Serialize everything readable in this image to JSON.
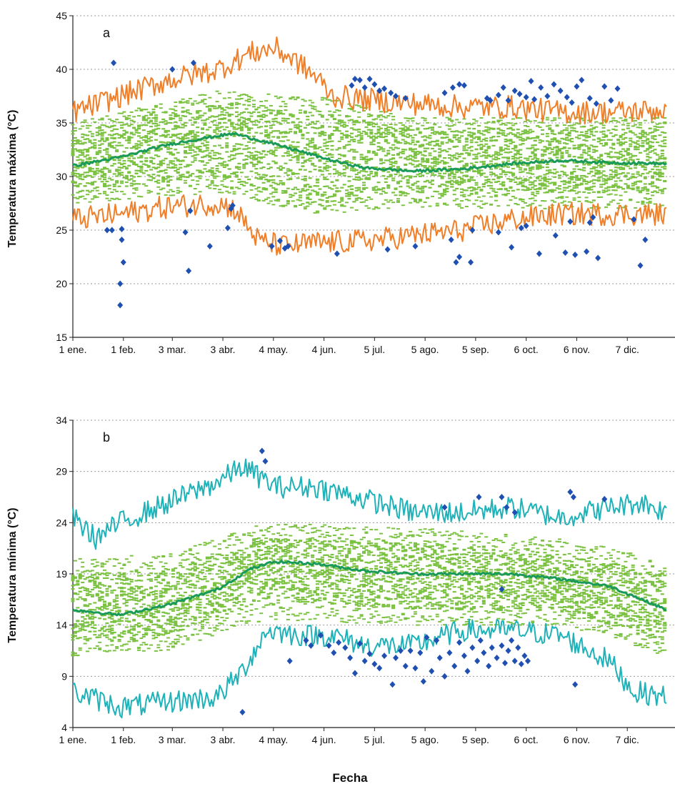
{
  "figure": {
    "xlabel": "Fecha"
  },
  "chart_data": [
    {
      "type": "line",
      "panel_label": "a",
      "ylabel": "Temperatura máxima (°C)",
      "xlabel": "Fecha",
      "ylim": [
        15,
        45
      ],
      "yticks": [
        15,
        20,
        25,
        30,
        35,
        40,
        45
      ],
      "xlim_day": [
        1,
        365
      ],
      "grid": "horizontal-dotted",
      "x_ticks": [
        {
          "day": 1,
          "label": "1 ene."
        },
        {
          "day": 32,
          "label": "1 feb."
        },
        {
          "day": 62,
          "label": "3 mar."
        },
        {
          "day": 93,
          "label": "3 abr."
        },
        {
          "day": 124,
          "label": "4 may."
        },
        {
          "day": 155,
          "label": "4 jun."
        },
        {
          "day": 186,
          "label": "5 jul."
        },
        {
          "day": 217,
          "label": "5 ago."
        },
        {
          "day": 248,
          "label": "5 sep."
        },
        {
          "day": 279,
          "label": "6 oct."
        },
        {
          "day": 310,
          "label": "6 nov."
        },
        {
          "day": 341,
          "label": "7 dic."
        }
      ],
      "colors": {
        "upper_lower": "#f07f2a",
        "mean": "#1a9a58",
        "ensemble": "#7cc242",
        "observed": "#1f4fb0"
      },
      "series": [
        {
          "role": "upper",
          "values": [
            [
              1,
              36.0
            ],
            [
              30,
              37.5
            ],
            [
              60,
              39.0
            ],
            [
              90,
              40.0
            ],
            [
              110,
              41.5
            ],
            [
              125,
              42.0
            ],
            [
              140,
              40.5
            ],
            [
              152,
              39.0
            ],
            [
              160,
              37.5
            ],
            [
              180,
              37.2
            ],
            [
              210,
              36.8
            ],
            [
              240,
              36.5
            ],
            [
              270,
              36.5
            ],
            [
              300,
              36.0
            ],
            [
              330,
              36.0
            ],
            [
              365,
              36.2
            ]
          ]
        },
        {
          "role": "mean",
          "values": [
            [
              1,
              31.0
            ],
            [
              30,
              31.8
            ],
            [
              60,
              33.0
            ],
            [
              90,
              33.8
            ],
            [
              100,
              34.0
            ],
            [
              130,
              32.8
            ],
            [
              160,
              31.5
            ],
            [
              180,
              30.8
            ],
            [
              210,
              30.5
            ],
            [
              240,
              30.7
            ],
            [
              270,
              31.2
            ],
            [
              300,
              31.5
            ],
            [
              330,
              31.3
            ],
            [
              365,
              31.2
            ]
          ]
        },
        {
          "role": "lower",
          "values": [
            [
              1,
              26.0
            ],
            [
              30,
              26.5
            ],
            [
              60,
              27.2
            ],
            [
              90,
              27.5
            ],
            [
              100,
              27.0
            ],
            [
              115,
              24.0
            ],
            [
              130,
              23.5
            ],
            [
              150,
              23.8
            ],
            [
              180,
              24.0
            ],
            [
              210,
              24.5
            ],
            [
              240,
              25.0
            ],
            [
              270,
              26.0
            ],
            [
              300,
              26.5
            ],
            [
              330,
              26.5
            ],
            [
              365,
              26.5
            ]
          ]
        }
      ],
      "ensemble": {
        "low": [
          [
            1,
            28.5
          ],
          [
            90,
            30.0
          ],
          [
            150,
            27.5
          ],
          [
            210,
            28.5
          ],
          [
            365,
            28.5
          ]
        ],
        "high": [
          [
            1,
            34.0
          ],
          [
            90,
            37.0
          ],
          [
            150,
            36.0
          ],
          [
            210,
            34.5
          ],
          [
            365,
            34.5
          ]
        ],
        "outer_low": [
          [
            1,
            27.5
          ],
          [
            90,
            28.5
          ],
          [
            150,
            26.5
          ],
          [
            210,
            27.0
          ],
          [
            365,
            27.0
          ]
        ],
        "outer_high": [
          [
            1,
            35.0
          ],
          [
            90,
            38.0
          ],
          [
            150,
            37.5
          ],
          [
            210,
            35.5
          ],
          [
            365,
            35.5
          ]
        ]
      },
      "observed": [
        [
          26,
          40.6
        ],
        [
          62,
          40.0
        ],
        [
          75,
          40.6
        ],
        [
          22,
          25
        ],
        [
          25,
          25
        ],
        [
          31,
          25.1
        ],
        [
          31,
          24.1
        ],
        [
          32,
          22.0
        ],
        [
          30,
          20.0
        ],
        [
          30,
          18.0
        ],
        [
          70,
          24.8
        ],
        [
          72,
          21.2
        ],
        [
          73,
          26.8
        ],
        [
          85,
          23.5
        ],
        [
          96,
          25.2
        ],
        [
          98,
          27.0
        ],
        [
          99,
          27.3
        ],
        [
          123,
          23.5
        ],
        [
          128,
          24.0
        ],
        [
          131,
          23.3
        ],
        [
          133,
          23.5
        ],
        [
          163,
          22.8
        ],
        [
          172,
          38.5
        ],
        [
          174,
          39.1
        ],
        [
          177,
          39.0
        ],
        [
          180,
          38.3
        ],
        [
          183,
          39.1
        ],
        [
          186,
          38.6
        ],
        [
          189,
          38.0
        ],
        [
          192,
          38.2
        ],
        [
          196,
          37.8
        ],
        [
          199,
          37.5
        ],
        [
          205,
          37.3
        ],
        [
          229,
          37.8
        ],
        [
          234,
          38.3
        ],
        [
          238,
          38.6
        ],
        [
          241,
          38.5
        ],
        [
          233,
          24.1
        ],
        [
          236,
          22.0
        ],
        [
          238,
          22.5
        ],
        [
          245,
          22.0
        ],
        [
          246,
          25.0
        ],
        [
          255,
          37.3
        ],
        [
          257,
          37.1
        ],
        [
          262,
          37.6
        ],
        [
          265,
          38.3
        ],
        [
          268,
          37.1
        ],
        [
          272,
          38.0
        ],
        [
          275,
          37.7
        ],
        [
          279,
          37.4
        ],
        [
          282,
          38.9
        ],
        [
          284,
          37.2
        ],
        [
          288,
          38.3
        ],
        [
          292,
          37.5
        ],
        [
          296,
          38.6
        ],
        [
          300,
          38.0
        ],
        [
          304,
          37.4
        ],
        [
          307,
          36.9
        ],
        [
          310,
          38.4
        ],
        [
          313,
          39.0
        ],
        [
          318,
          37.3
        ],
        [
          322,
          36.8
        ],
        [
          327,
          38.4
        ],
        [
          331,
          37.1
        ],
        [
          335,
          38.2
        ],
        [
          262,
          24.8
        ],
        [
          270,
          23.4
        ],
        [
          276,
          25.2
        ],
        [
          279,
          25.4
        ],
        [
          287,
          22.8
        ],
        [
          297,
          24.5
        ],
        [
          303,
          22.9
        ],
        [
          306,
          25.8
        ],
        [
          309,
          22.7
        ],
        [
          316,
          23.0
        ],
        [
          318,
          25.7
        ],
        [
          320,
          26.2
        ],
        [
          323,
          22.4
        ],
        [
          345,
          26.0
        ],
        [
          349,
          21.7
        ],
        [
          352,
          24.1
        ],
        [
          194,
          23.2
        ],
        [
          211,
          23.5
        ]
      ]
    },
    {
      "type": "line",
      "panel_label": "b",
      "ylabel": "Temperatura mínima (°C)",
      "xlabel": "Fecha",
      "ylim": [
        4,
        34
      ],
      "yticks": [
        4,
        9,
        14,
        19,
        24,
        29,
        34
      ],
      "xlim_day": [
        1,
        365
      ],
      "grid": "horizontal-dotted",
      "x_ticks": [
        {
          "day": 1,
          "label": "1 ene."
        },
        {
          "day": 32,
          "label": "1 feb."
        },
        {
          "day": 62,
          "label": "3 mar."
        },
        {
          "day": 93,
          "label": "3 abr."
        },
        {
          "day": 124,
          "label": "4 may."
        },
        {
          "day": 155,
          "label": "4 jun."
        },
        {
          "day": 186,
          "label": "5 jul."
        },
        {
          "day": 217,
          "label": "5 ago."
        },
        {
          "day": 248,
          "label": "5 sep."
        },
        {
          "day": 279,
          "label": "6 oct."
        },
        {
          "day": 310,
          "label": "6 nov."
        },
        {
          "day": 341,
          "label": "7 dic."
        }
      ],
      "colors": {
        "upper_lower": "#1fb2b8",
        "mean": "#1a9a58",
        "ensemble": "#7cc242",
        "observed": "#1f4fb0"
      },
      "series": [
        {
          "role": "upper",
          "values": [
            [
              1,
              24.5
            ],
            [
              15,
              22.5
            ],
            [
              30,
              24.0
            ],
            [
              60,
              26.0
            ],
            [
              90,
              28.0
            ],
            [
              105,
              29.5
            ],
            [
              125,
              27.5
            ],
            [
              150,
              27.5
            ],
            [
              175,
              26.5
            ],
            [
              210,
              25.0
            ],
            [
              240,
              25.0
            ],
            [
              270,
              25.5
            ],
            [
              300,
              24.5
            ],
            [
              330,
              25.5
            ],
            [
              350,
              26.0
            ],
            [
              365,
              25.0
            ]
          ]
        },
        {
          "role": "mean",
          "values": [
            [
              1,
              15.5
            ],
            [
              30,
              15.0
            ],
            [
              60,
              16.0
            ],
            [
              90,
              17.5
            ],
            [
              110,
              19.5
            ],
            [
              125,
              20.2
            ],
            [
              150,
              20.0
            ],
            [
              180,
              19.3
            ],
            [
              210,
              19.0
            ],
            [
              240,
              19.0
            ],
            [
              270,
              19.0
            ],
            [
              300,
              18.5
            ],
            [
              330,
              17.8
            ],
            [
              350,
              16.5
            ],
            [
              365,
              15.5
            ]
          ]
        },
        {
          "role": "lower",
          "values": [
            [
              1,
              7.5
            ],
            [
              30,
              6.0
            ],
            [
              60,
              6.5
            ],
            [
              90,
              7.0
            ],
            [
              105,
              9.5
            ],
            [
              120,
              13.5
            ],
            [
              140,
              13.0
            ],
            [
              160,
              13.0
            ],
            [
              180,
              12.0
            ],
            [
              210,
              12.0
            ],
            [
              240,
              13.5
            ],
            [
              270,
              13.5
            ],
            [
              300,
              13.0
            ],
            [
              330,
              10.5
            ],
            [
              345,
              7.5
            ],
            [
              365,
              7.0
            ]
          ]
        }
      ],
      "ensemble": {
        "low": [
          [
            1,
            12.5
          ],
          [
            60,
            13.0
          ],
          [
            120,
            16.5
          ],
          [
            210,
            15.5
          ],
          [
            300,
            15.5
          ],
          [
            365,
            12.5
          ]
        ],
        "high": [
          [
            1,
            19.0
          ],
          [
            60,
            19.5
          ],
          [
            120,
            22.5
          ],
          [
            210,
            22.0
          ],
          [
            300,
            21.0
          ],
          [
            365,
            19.0
          ]
        ],
        "outer_low": [
          [
            1,
            11.0
          ],
          [
            60,
            11.5
          ],
          [
            120,
            14.5
          ],
          [
            210,
            14.0
          ],
          [
            300,
            14.0
          ],
          [
            365,
            11.0
          ]
        ],
        "outer_high": [
          [
            1,
            20.5
          ],
          [
            60,
            21.0
          ],
          [
            120,
            24.0
          ],
          [
            210,
            23.5
          ],
          [
            300,
            22.5
          ],
          [
            365,
            20.5
          ]
        ]
      },
      "observed": [
        [
          117,
          31.0
        ],
        [
          119,
          30.0
        ],
        [
          105,
          5.5
        ],
        [
          134,
          10.5
        ],
        [
          144,
          12.5
        ],
        [
          147,
          12.0
        ],
        [
          153,
          13.0
        ],
        [
          158,
          12.0
        ],
        [
          161,
          11.3
        ],
        [
          164,
          12.3
        ],
        [
          168,
          11.8
        ],
        [
          171,
          10.8
        ],
        [
          174,
          9.3
        ],
        [
          177,
          12.2
        ],
        [
          180,
          10.5
        ],
        [
          183,
          11.2
        ],
        [
          186,
          10.2
        ],
        [
          189,
          9.8
        ],
        [
          192,
          11.0
        ],
        [
          197,
          8.2
        ],
        [
          199,
          10.8
        ],
        [
          202,
          11.5
        ],
        [
          205,
          10.0
        ],
        [
          208,
          11.5
        ],
        [
          211,
          9.8
        ],
        [
          214,
          11.3
        ],
        [
          216,
          8.5
        ],
        [
          218,
          12.8
        ],
        [
          221,
          9.5
        ],
        [
          224,
          12.5
        ],
        [
          226,
          10.8
        ],
        [
          229,
          9.0
        ],
        [
          232,
          11.3
        ],
        [
          235,
          10.0
        ],
        [
          238,
          12.3
        ],
        [
          241,
          11.0
        ],
        [
          243,
          9.5
        ],
        [
          246,
          11.8
        ],
        [
          249,
          10.5
        ],
        [
          251,
          12.5
        ],
        [
          253,
          11.3
        ],
        [
          256,
          10.0
        ],
        [
          258,
          11.8
        ],
        [
          261,
          10.8
        ],
        [
          264,
          12.0
        ],
        [
          266,
          10.3
        ],
        [
          268,
          11.5
        ],
        [
          270,
          12.5
        ],
        [
          272,
          10.5
        ],
        [
          274,
          11.8
        ],
        [
          276,
          10.2
        ],
        [
          278,
          11.0
        ],
        [
          280,
          10.5
        ],
        [
          229,
          25.5
        ],
        [
          250,
          26.5
        ],
        [
          264,
          26.5
        ],
        [
          267,
          25.5
        ],
        [
          272,
          25.0
        ],
        [
          306,
          27.0
        ],
        [
          308,
          26.5
        ],
        [
          327,
          26.3
        ],
        [
          309,
          8.2
        ],
        [
          264,
          17.5
        ]
      ]
    }
  ]
}
